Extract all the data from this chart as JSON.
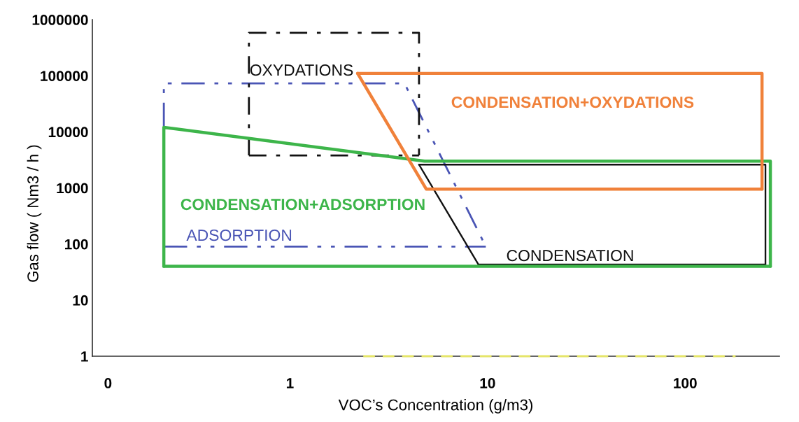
{
  "chart_data": {
    "type": "line",
    "xlabel": "VOC’s Concentration (g/m3)",
    "ylabel": "Gas flow ( Nm3 / h )",
    "log": "xy",
    "xlim": [
      0.1,
      300
    ],
    "xticks": [
      {
        "value": 0.12,
        "label": "0"
      },
      1,
      10,
      100
    ],
    "ylim": [
      1,
      1000000
    ],
    "yticks": [
      1,
      10,
      100,
      1000,
      10000,
      100000,
      1000000
    ],
    "series": [
      {
        "color": "#4a55b5",
        "line_style": "dashdotdot",
        "x": [
          0.23,
          0.23,
          3.8,
          9.8
        ],
        "values": [
          90,
          73000,
          73000,
          90
        ]
      },
      {
        "name": "ADSORPTION",
        "color": "#4a55b5",
        "line_style": "dashdotdot",
        "x": [
          0.23,
          9.8
        ],
        "values": [
          90,
          90
        ]
      },
      {
        "name": "OXYDATIONS",
        "color": "#111111",
        "line_style": "dashdot",
        "x": [
          0.62,
          0.62,
          4.5,
          4.5
        ],
        "values": [
          3800,
          580000,
          580000,
          3800
        ]
      },
      {
        "color": "#111111",
        "line_style": "dashdot",
        "x": [
          0.62,
          4.5
        ],
        "values": [
          3800,
          3800
        ]
      },
      {
        "color": "#111111",
        "line_style": "solid",
        "x": [
          4.5,
          255,
          255
        ],
        "values": [
          2600,
          2600,
          43
        ]
      },
      {
        "name": "CONDENSATION",
        "color": "#111111",
        "line_style": "solid",
        "x": [
          4.5,
          9.0,
          255
        ],
        "values": [
          2600,
          43,
          43
        ]
      },
      {
        "name": "CONDENSATION+ADSORPTION",
        "color": "#3db54a",
        "line_style": "solid",
        "x": [
          0.23,
          0.23,
          4.8,
          270,
          270
        ],
        "values": [
          40,
          12000,
          3000,
          3000,
          40
        ]
      },
      {
        "color": "#3db54a",
        "line_style": "solid",
        "x": [
          0.23,
          270
        ],
        "values": [
          40,
          40
        ]
      },
      {
        "name": "CONDENSATION+OXYDATIONS",
        "color": "#f0813a",
        "line_style": "solid",
        "x": [
          2.2,
          245,
          245
        ],
        "values": [
          110000,
          110000,
          950
        ]
      },
      {
        "color": "#f0813a",
        "line_style": "solid",
        "x": [
          2.2,
          4.9,
          245
        ],
        "values": [
          110000,
          950,
          950
        ]
      },
      {
        "color": "#e5e56a",
        "line_style": "dashed",
        "x": [
          2.35,
          180
        ],
        "values": [
          1,
          1
        ]
      }
    ]
  }
}
